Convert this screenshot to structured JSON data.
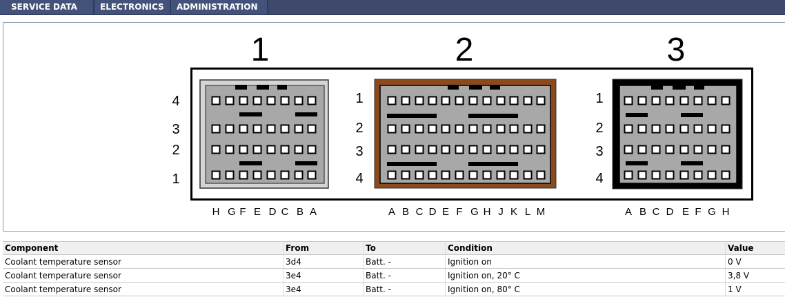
{
  "nav": {
    "tabs": [
      {
        "label": "SERVICE DATA"
      },
      {
        "label": "ELECTRONICS"
      },
      {
        "label": "ADMINISTRATION"
      }
    ]
  },
  "diagram": {
    "connectors": [
      {
        "number": "1",
        "housing_color": "#d4d4d4",
        "row_labels": [
          "4",
          "3",
          "2",
          "1"
        ],
        "column_labels": [
          "H",
          "G",
          "F",
          "E",
          "D",
          "C",
          "B",
          "A"
        ]
      },
      {
        "number": "2",
        "housing_color": "#8b4a1c",
        "row_labels": [
          "1",
          "2",
          "3",
          "4"
        ],
        "column_labels": [
          "A",
          "B",
          "C",
          "D",
          "E",
          "F",
          "G",
          "H",
          "J",
          "K",
          "L",
          "M"
        ]
      },
      {
        "number": "3",
        "housing_color": "#000000",
        "row_labels": [
          "1",
          "2",
          "3",
          "4"
        ],
        "column_labels": [
          "A",
          "B",
          "C",
          "D",
          "E",
          "F",
          "G",
          "H"
        ]
      }
    ]
  },
  "table": {
    "headers": [
      "Component",
      "From",
      "To",
      "Condition",
      "Value"
    ],
    "rows": [
      [
        "Coolant temperature sensor",
        "3d4",
        "Batt. -",
        "Ignition on",
        "0 V"
      ],
      [
        "Coolant temperature sensor",
        "3e4",
        "Batt. -",
        "Ignition on, 20° C",
        "3,8 V"
      ],
      [
        "Coolant temperature sensor",
        "3e4",
        "Batt. -",
        "Ignition on, 80° C",
        "1 V"
      ]
    ]
  }
}
